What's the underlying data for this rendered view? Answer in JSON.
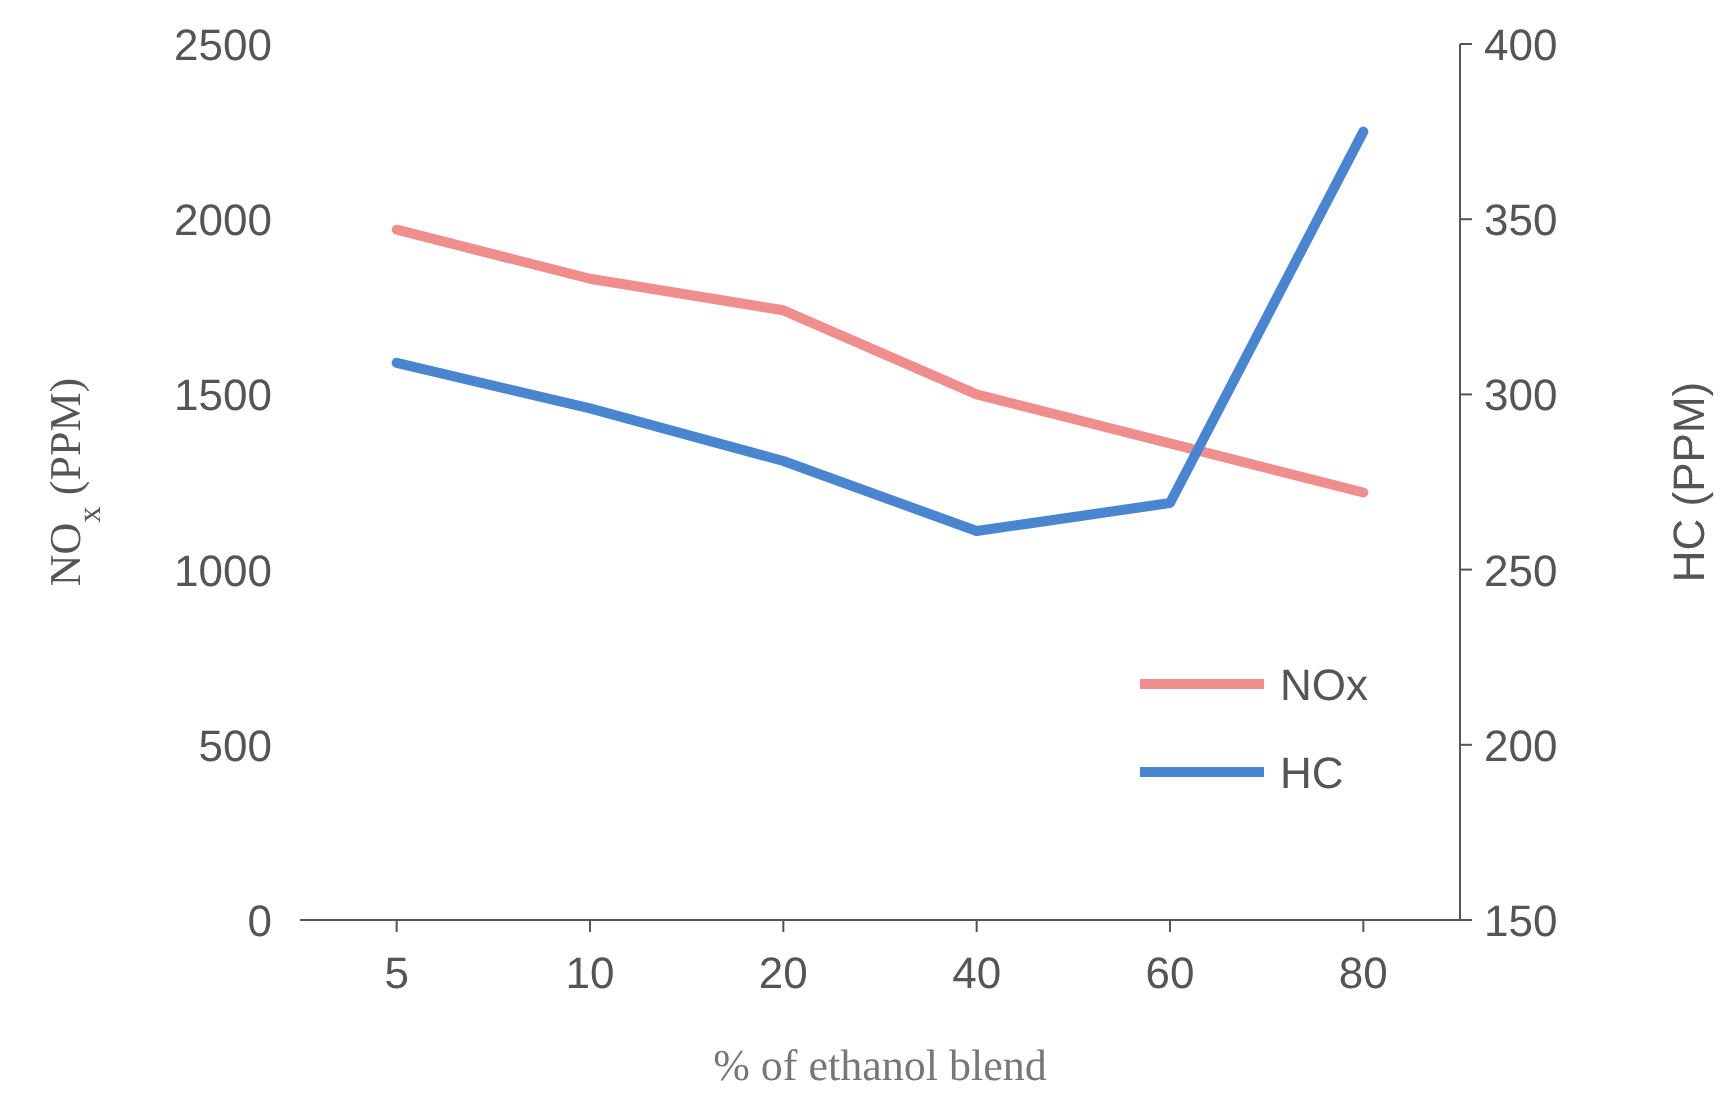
{
  "chart_data": {
    "type": "line",
    "xlabel": "% of ethanol blend",
    "ylabel": "NO$_{x}$ (PPM)",
    "y2label": "HC (PPM)",
    "categories": [
      "5",
      "10",
      "20",
      "40",
      "60",
      "80"
    ],
    "series": [
      {
        "name": "NOx",
        "color": "#f08e8e",
        "values": [
          1970,
          1830,
          1740,
          1500,
          1360,
          1220
        ]
      },
      {
        "name": "HC",
        "color": "#4a86d0",
        "axis": "y2",
        "values": [
          309,
          296,
          281,
          261,
          269,
          375
        ]
      }
    ],
    "ylim": [
      0,
      2500
    ],
    "yticks": [
      0,
      500,
      1000,
      1500,
      2000,
      2500
    ],
    "y2lim": [
      150,
      400
    ],
    "y2ticks": [
      150,
      200,
      250,
      300,
      350,
      400
    ],
    "legend": "right",
    "grid": false,
    "marker": "none",
    "line_style": "solid"
  }
}
